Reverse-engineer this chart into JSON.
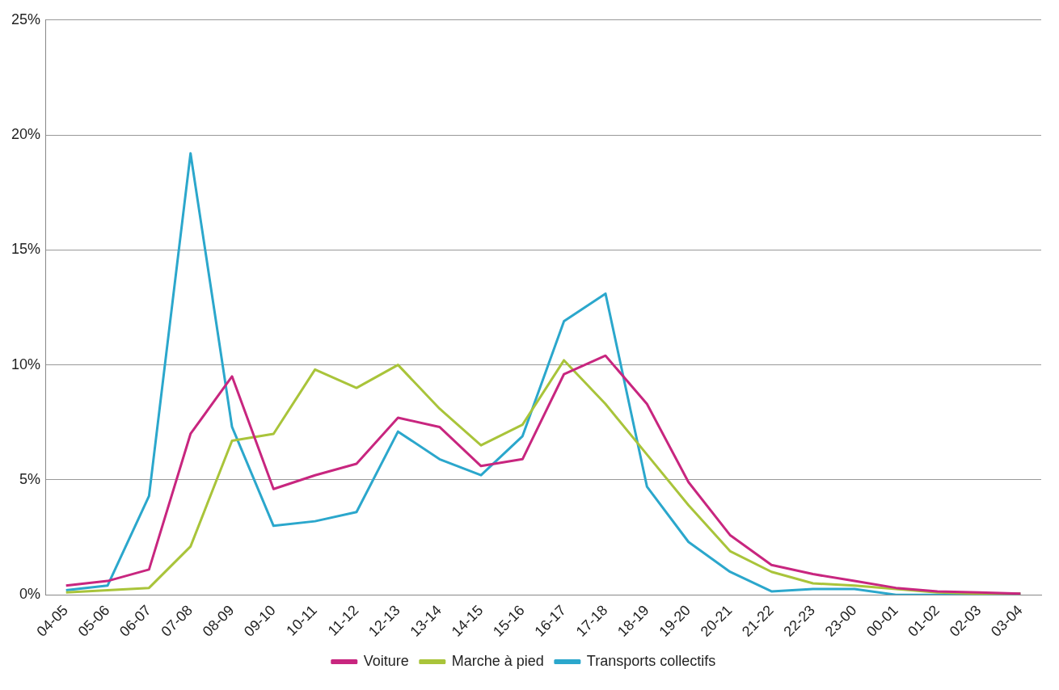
{
  "chart_data": {
    "type": "line",
    "categories": [
      "04-05",
      "05-06",
      "06-07",
      "07-08",
      "08-09",
      "09-10",
      "10-11",
      "11-12",
      "12-13",
      "13-14",
      "14-15",
      "15-16",
      "16-17",
      "17-18",
      "18-19",
      "19-20",
      "20-21",
      "21-22",
      "22-23",
      "23-00",
      "00-01",
      "01-02",
      "02-03",
      "03-04"
    ],
    "series": [
      {
        "name": "Voiture",
        "color": "#c8267f",
        "values": [
          0.4,
          0.6,
          1.1,
          7.0,
          9.5,
          4.6,
          5.2,
          5.7,
          7.7,
          7.3,
          5.6,
          5.9,
          9.6,
          10.4,
          8.3,
          4.9,
          2.6,
          1.3,
          0.9,
          0.6,
          0.3,
          0.15,
          0.1,
          0.05
        ]
      },
      {
        "name": "Marche à pied",
        "color": "#a9c43a",
        "values": [
          0.1,
          0.2,
          0.3,
          2.1,
          6.7,
          7.0,
          9.8,
          9.0,
          10.0,
          8.1,
          6.5,
          7.4,
          10.2,
          8.3,
          6.1,
          3.9,
          1.9,
          1.0,
          0.5,
          0.4,
          0.25,
          0.1,
          0.05,
          0.05
        ]
      },
      {
        "name": "Transports collectifs",
        "color": "#2ba7cc",
        "values": [
          0.2,
          0.4,
          4.3,
          19.2,
          7.3,
          3.0,
          3.2,
          3.6,
          7.1,
          5.9,
          5.2,
          6.9,
          11.9,
          13.1,
          4.7,
          2.3,
          1.0,
          0.15,
          0.25,
          0.25,
          0.0,
          0.0,
          0.0,
          0.05
        ]
      }
    ],
    "ylim": [
      0,
      25
    ],
    "yticks": [
      {
        "value": 0,
        "label": "0%"
      },
      {
        "value": 5,
        "label": "5%"
      },
      {
        "value": 10,
        "label": "10%"
      },
      {
        "value": 15,
        "label": "15%"
      },
      {
        "value": 20,
        "label": "20%"
      },
      {
        "value": 25,
        "label": "25%"
      }
    ],
    "grid": "y",
    "legend": "bottom",
    "marker": "none",
    "line_style": "solid"
  }
}
